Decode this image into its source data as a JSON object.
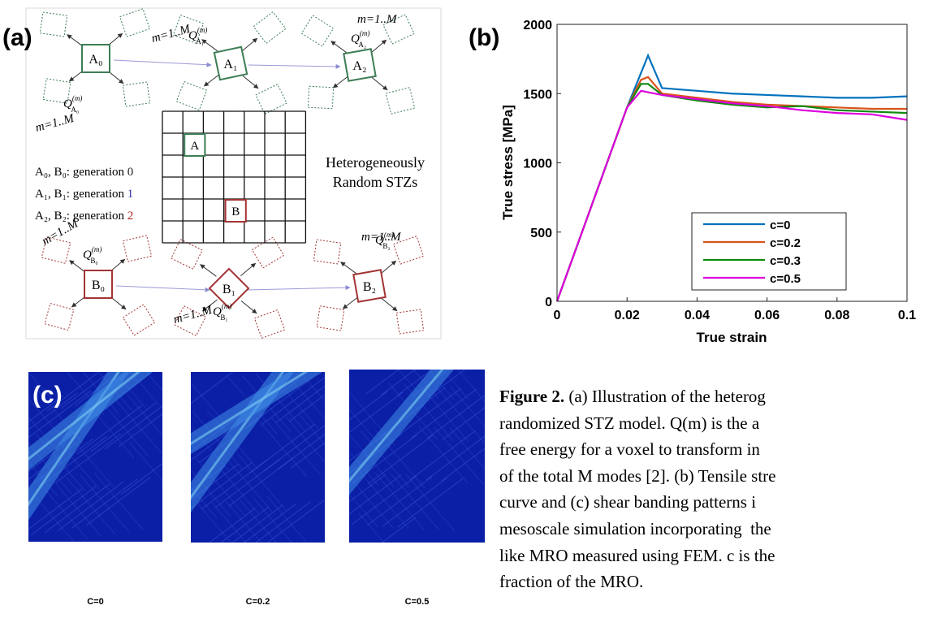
{
  "panel_a": {
    "label": "(a)",
    "symbol": "Q",
    "nodes": [
      {
        "name": "A₀",
        "q_sub": "A₀",
        "q_sup": "(m)",
        "modes": "m=1..M",
        "color": "#3d7d55"
      },
      {
        "name": "A₁",
        "q_sub": "A₁",
        "q_sup": "(m)",
        "modes": "m=1..M",
        "color": "#3d7d55"
      },
      {
        "name": "A₂",
        "q_sub": "A₂",
        "q_sup": "(m)",
        "modes": "m=1..M",
        "color": "#3d7d55"
      },
      {
        "name": "B₀",
        "q_sub": "B₀",
        "q_sup": "(m)",
        "modes": "m=1..M",
        "color": "#a33434"
      },
      {
        "name": "B₁",
        "q_sub": "B₁",
        "q_sup": "(m)",
        "modes": "m=1..M",
        "color": "#a33434"
      },
      {
        "name": "B₂",
        "q_sub": "B₂",
        "q_sup": "(m)",
        "modes": "m=1..M",
        "color": "#a33434"
      }
    ],
    "grid_cells": [
      {
        "label": "A",
        "color": "#3d7d55"
      },
      {
        "label": "B",
        "color": "#a33434"
      }
    ],
    "generations": [
      {
        "text": "A₀, B₀: generation ",
        "number": "0",
        "color": "#222222"
      },
      {
        "text": "A₁, B₁: generation ",
        "number": "1",
        "color": "#3333aa"
      },
      {
        "text": "A₂, B₂: generation ",
        "number": "2",
        "color": "#b02020"
      }
    ],
    "note": [
      "Heterogeneously",
      "Random STZs"
    ]
  },
  "chart_data": {
    "type": "line",
    "panel_label": "(b)",
    "x_label": "True strain",
    "y_label": "True stress [MPa]",
    "x": [
      0,
      0.02,
      0.024,
      0.026,
      0.03,
      0.04,
      0.05,
      0.06,
      0.07,
      0.08,
      0.09,
      0.1
    ],
    "series": [
      {
        "name": "c=0",
        "color": "#0072bd",
        "values": [
          0,
          1400,
          1650,
          1775,
          1540,
          1520,
          1500,
          1490,
          1480,
          1470,
          1470,
          1480
        ]
      },
      {
        "name": "c=0.2",
        "color": "#d95319",
        "values": [
          0,
          1400,
          1600,
          1620,
          1500,
          1470,
          1440,
          1420,
          1410,
          1400,
          1390,
          1390
        ]
      },
      {
        "name": "c=0.3",
        "color": "#108a10",
        "values": [
          0,
          1400,
          1570,
          1570,
          1490,
          1450,
          1420,
          1400,
          1410,
          1380,
          1370,
          1360
        ]
      },
      {
        "name": "c=0.5",
        "color": "#dd00dd",
        "values": [
          0,
          1400,
          1520,
          1510,
          1490,
          1460,
          1430,
          1410,
          1380,
          1360,
          1350,
          1310
        ]
      }
    ],
    "xlim": [
      0,
      0.1
    ],
    "ylim": [
      0,
      2000
    ],
    "xticks": [
      0,
      0.02,
      0.04,
      0.06,
      0.08,
      0.1
    ],
    "yticks": [
      0,
      500,
      1000,
      1500,
      2000
    ],
    "legend": "lower right"
  },
  "panel_c": {
    "label": "(c)",
    "images": [
      {
        "label": "C=0"
      },
      {
        "label": "C=0.2"
      },
      {
        "label": "C=0.5"
      }
    ]
  },
  "caption": {
    "label": "Figure 2.",
    "lines": [
      " (a) Illustration of the heterog",
      "randomized STZ model. Q(m) is the a",
      "free energy for a voxel to transform in",
      "of the total M modes [2]. (b) Tensile stre",
      "curve and (c) shear banding patterns i",
      "mesoscale simulation incorporating  the",
      "like MRO measured using FEM. c is the",
      "fraction of the MRO."
    ]
  }
}
